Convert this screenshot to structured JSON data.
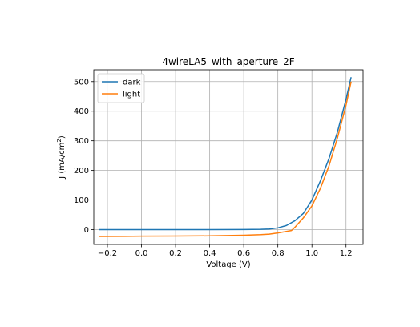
{
  "chart_data": {
    "type": "line",
    "title": "4wireLA5_with_aperture_2F",
    "xlabel": "Voltage (V)",
    "ylabel_main": "J (mA/cm",
    "ylabel_sup": "2",
    "ylabel_tail": ")",
    "xlim": [
      -0.28,
      1.3
    ],
    "ylim": [
      -50,
      540
    ],
    "xticks": [
      -0.2,
      0.0,
      0.2,
      0.4,
      0.6,
      0.8,
      1.0,
      1.2
    ],
    "xtick_labels": [
      "−0.2",
      "0.0",
      "0.2",
      "0.4",
      "0.6",
      "0.8",
      "1.0",
      "1.2"
    ],
    "yticks": [
      0,
      100,
      200,
      300,
      400,
      500
    ],
    "ytick_labels": [
      "0",
      "100",
      "200",
      "300",
      "400",
      "500"
    ],
    "grid": true,
    "legend_position": "top-left",
    "series": [
      {
        "name": "dark",
        "color": "#1f77b4",
        "x": [
          -0.25,
          -0.1,
          0.0,
          0.2,
          0.4,
          0.6,
          0.7,
          0.75,
          0.8,
          0.85,
          0.9,
          0.95,
          1.0,
          1.05,
          1.1,
          1.15,
          1.2,
          1.23
        ],
        "y": [
          0,
          0,
          0,
          0,
          0,
          0.3,
          1,
          2,
          6,
          14,
          30,
          55,
          100,
          165,
          240,
          330,
          440,
          515
        ]
      },
      {
        "name": "light",
        "color": "#ff7f0e",
        "x": [
          -0.25,
          -0.1,
          0.0,
          0.2,
          0.4,
          0.6,
          0.7,
          0.75,
          0.8,
          0.85,
          0.88,
          0.9,
          0.95,
          1.0,
          1.05,
          1.1,
          1.15,
          1.2,
          1.23
        ],
        "y": [
          -23,
          -22.5,
          -22,
          -21.5,
          -21,
          -19,
          -17,
          -15,
          -11,
          -6,
          -3,
          8,
          40,
          80,
          140,
          215,
          310,
          420,
          500
        ]
      }
    ]
  }
}
